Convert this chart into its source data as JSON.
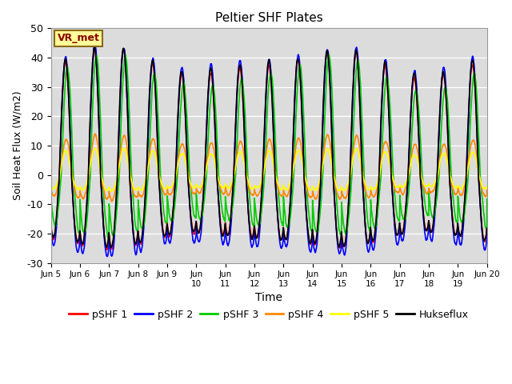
{
  "title": "Peltier SHF Plates",
  "xlabel": "Time",
  "ylabel": "Soil Heat Flux (W/m2)",
  "ylim": [
    -30,
    50
  ],
  "xlim": [
    0,
    360
  ],
  "background_color": "#dcdcdc",
  "annotation_text": "VR_met",
  "annotation_box_color": "#ffff99",
  "annotation_text_color": "#8b0000",
  "series": [
    {
      "label": "pSHF 1",
      "color": "#ff0000"
    },
    {
      "label": "pSHF 2",
      "color": "#0000ff"
    },
    {
      "label": "pSHF 3",
      "color": "#00cc00"
    },
    {
      "label": "pSHF 4",
      "color": "#ff8800"
    },
    {
      "label": "pSHF 5",
      "color": "#ffff00"
    },
    {
      "label": "Hukseflux",
      "color": "#000000"
    }
  ],
  "xtick_positions": [
    0,
    24,
    48,
    72,
    96,
    120,
    144,
    168,
    192,
    216,
    240,
    264,
    288,
    312,
    336,
    360
  ],
  "xtick_labels": [
    "Jun 5",
    "Jun 6",
    "Jun 7",
    "Jun 8",
    "Jun 9",
    "Jun\n10",
    "Jun\n11",
    "Jun\n12",
    "Jun\n13",
    "Jun\n14",
    "Jun\n15",
    "Jun\n16",
    "Jun\n17",
    "Jun\n18",
    "Jun\n19",
    "Jun 20"
  ],
  "ytick_positions": [
    -30,
    -20,
    -10,
    0,
    10,
    20,
    30,
    40,
    50
  ],
  "seed": 42,
  "n_points": 3601
}
